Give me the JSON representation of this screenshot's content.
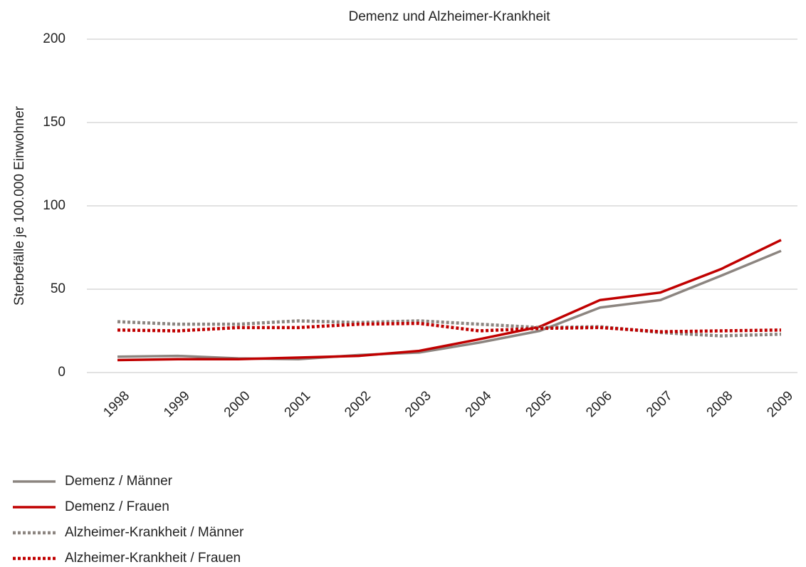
{
  "chart_data": {
    "type": "line",
    "title": "Demenz und Alzheimer-Krankheit",
    "y_label": "Sterbefälle je 100.000 Einwohner",
    "categories": [
      "1998",
      "1999",
      "2000",
      "2001",
      "2002",
      "2003",
      "2004",
      "2005",
      "2006",
      "2007",
      "2008",
      "2009"
    ],
    "series": [
      {
        "name": "Demenz / Männer",
        "color": "#8c8580",
        "dash": false,
        "values": [
          9.5,
          10,
          8.5,
          8,
          10.5,
          12,
          18,
          25,
          39,
          43.5,
          58,
          73
        ]
      },
      {
        "name": "Demenz / Frauen",
        "color": "#c00000",
        "dash": false,
        "values": [
          7.5,
          8,
          8,
          9,
          10,
          13,
          20,
          27.5,
          43.5,
          48,
          62,
          79.5
        ]
      },
      {
        "name": "Alzheimer-Krankheit / Männer",
        "color": "#8c8580",
        "dash": true,
        "values": [
          30.5,
          29,
          29,
          31,
          30,
          31,
          29,
          27,
          27.5,
          24,
          22,
          23
        ]
      },
      {
        "name": "Alzheimer-Krankheit / Frauen",
        "color": "#c00000",
        "dash": true,
        "values": [
          25.5,
          25,
          27,
          27,
          29,
          29.5,
          25,
          26.5,
          27,
          24.5,
          25,
          25.5
        ]
      }
    ],
    "ylim": [
      0,
      200
    ],
    "yticks": [
      0,
      50,
      100,
      150,
      200
    ],
    "grid": true,
    "legend": "bottom-left"
  }
}
